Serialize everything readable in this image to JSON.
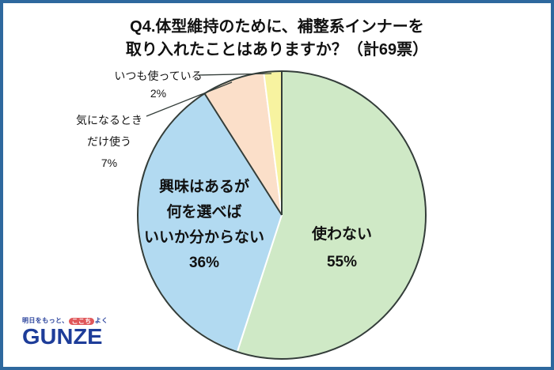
{
  "page": {
    "type": "survey-result-infographic",
    "background": "#ffffff",
    "border_color": "#2e689e"
  },
  "title": {
    "line1": "Q4.体型維持のために、補整系インナーを",
    "line2": "取り入れたことはありますか？（計69票）",
    "total_responses": "計69票"
  },
  "chart_data": {
    "type": "pie",
    "title": "Q4.体型維持のために、補整系インナーを取り入れたことはありますか？（計69票）",
    "unit": "%",
    "total_votes": 69,
    "direction": "clockwise",
    "start_angle": "12-o-clock",
    "slices": [
      {
        "name": "not-used",
        "label": "使わない",
        "percent": 55,
        "color": "#cfe9c6",
        "label_position": "inside"
      },
      {
        "name": "interested-but-unsure",
        "label": "興味はあるが何を選べばいいか分からない",
        "percent": 36,
        "color": "#b2daf1",
        "label_position": "inside"
      },
      {
        "name": "use-only-when-concerned",
        "label": "気になるときだけ使う",
        "percent": 7,
        "color": "#fbdfc9",
        "label_position": "outside"
      },
      {
        "name": "always-use",
        "label": "いつも使っている",
        "percent": 2,
        "color": "#f7f3a0",
        "label_position": "outside"
      }
    ],
    "outline_color": "#333d39",
    "separator_color": "#ffffff",
    "dark_radial_boundaries_percent": [
      0,
      91
    ],
    "legend": "none"
  },
  "labels": {
    "not_used": {
      "lines": [
        "使わない",
        "55%"
      ]
    },
    "interested_but_unsure": {
      "lines": [
        "興味はあるが",
        "何を選べば",
        "いいか分からない",
        "36%"
      ]
    },
    "use_when_concerned": {
      "lines": [
        "気になるとき",
        "だけ使う",
        "7%"
      ]
    },
    "always_use": {
      "lines": [
        "いつも使っている",
        "2%"
      ]
    }
  },
  "logo": {
    "tagline_prefix": "明日をもっと、",
    "tagline_badge": "ここち",
    "tagline_suffix": "よく",
    "brand": "GUNZE",
    "brand_color": "#1e3d99",
    "tagline_color": "#27409b",
    "badge_color": "#e0575a"
  }
}
